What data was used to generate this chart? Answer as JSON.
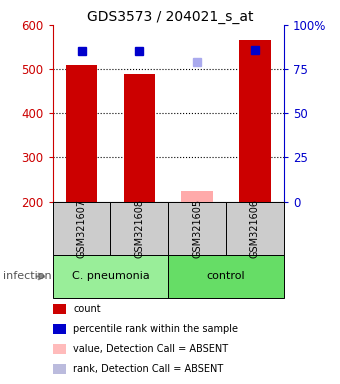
{
  "title": "GDS3573 / 204021_s_at",
  "samples": [
    "GSM321607",
    "GSM321608",
    "GSM321605",
    "GSM321606"
  ],
  "count_values": [
    510,
    490,
    225,
    565
  ],
  "count_colors": [
    "#cc0000",
    "#cc0000",
    "#ffaaaa",
    "#cc0000"
  ],
  "percentile_values": [
    85,
    85,
    79,
    86
  ],
  "percentile_colors": [
    "#0000cc",
    "#0000cc",
    "#aaaaee",
    "#0000cc"
  ],
  "ylim_left": [
    200,
    600
  ],
  "ylim_right": [
    0,
    100
  ],
  "yticks_left": [
    200,
    300,
    400,
    500,
    600
  ],
  "yticks_right": [
    0,
    25,
    50,
    75,
    100
  ],
  "ytick_labels_right": [
    "0",
    "25",
    "50",
    "75",
    "100%"
  ],
  "groups": [
    {
      "label": "C. pneumonia",
      "start": 0,
      "end": 2,
      "color": "#99ee99"
    },
    {
      "label": "control",
      "start": 2,
      "end": 4,
      "color": "#66dd66"
    }
  ],
  "group_label": "infection",
  "bar_width": 0.55,
  "marker_size": 6,
  "sample_box_color": "#cccccc",
  "left_axis_color": "#cc0000",
  "right_axis_color": "#0000cc",
  "legend_items": [
    {
      "color": "#cc0000",
      "label": "count"
    },
    {
      "color": "#0000cc",
      "label": "percentile rank within the sample"
    },
    {
      "color": "#ffbbbb",
      "label": "value, Detection Call = ABSENT"
    },
    {
      "color": "#bbbbdd",
      "label": "rank, Detection Call = ABSENT"
    }
  ]
}
